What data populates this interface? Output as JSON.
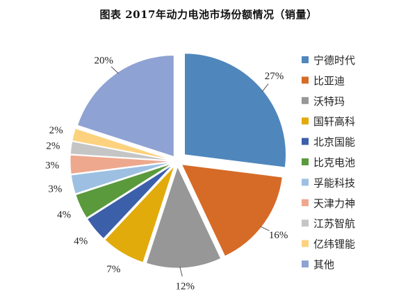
{
  "chart_data": {
    "type": "pie",
    "title": "图表 2017年动力电池市场份额情况（销量）",
    "legend_position": "right",
    "slices": [
      {
        "name": "宁德时代",
        "value": 27,
        "label": "27%",
        "color": "#4f87bd"
      },
      {
        "name": "比亚迪",
        "value": 16,
        "label": "16%",
        "color": "#d66b27"
      },
      {
        "name": "沃特玛",
        "value": 12,
        "label": "12%",
        "color": "#979797"
      },
      {
        "name": "国轩高科",
        "value": 7,
        "label": "7%",
        "color": "#e2ab0c"
      },
      {
        "name": "北京国能",
        "value": 4,
        "label": "4%",
        "color": "#3c5faa"
      },
      {
        "name": "比克电池",
        "value": 4,
        "label": "4%",
        "color": "#5a9a3d"
      },
      {
        "name": "孚能科技",
        "value": 3,
        "label": "3%",
        "color": "#9dc0e2"
      },
      {
        "name": "天津力神",
        "value": 3,
        "label": "3%",
        "color": "#eea88d"
      },
      {
        "name": "江苏智航",
        "value": 2,
        "label": "2%",
        "color": "#c5c5c5"
      },
      {
        "name": "亿纬锂能",
        "value": 2,
        "label": "2%",
        "color": "#fdd27f"
      },
      {
        "name": "其他",
        "value": 20,
        "label": "20%",
        "color": "#8ea2d3"
      }
    ]
  }
}
